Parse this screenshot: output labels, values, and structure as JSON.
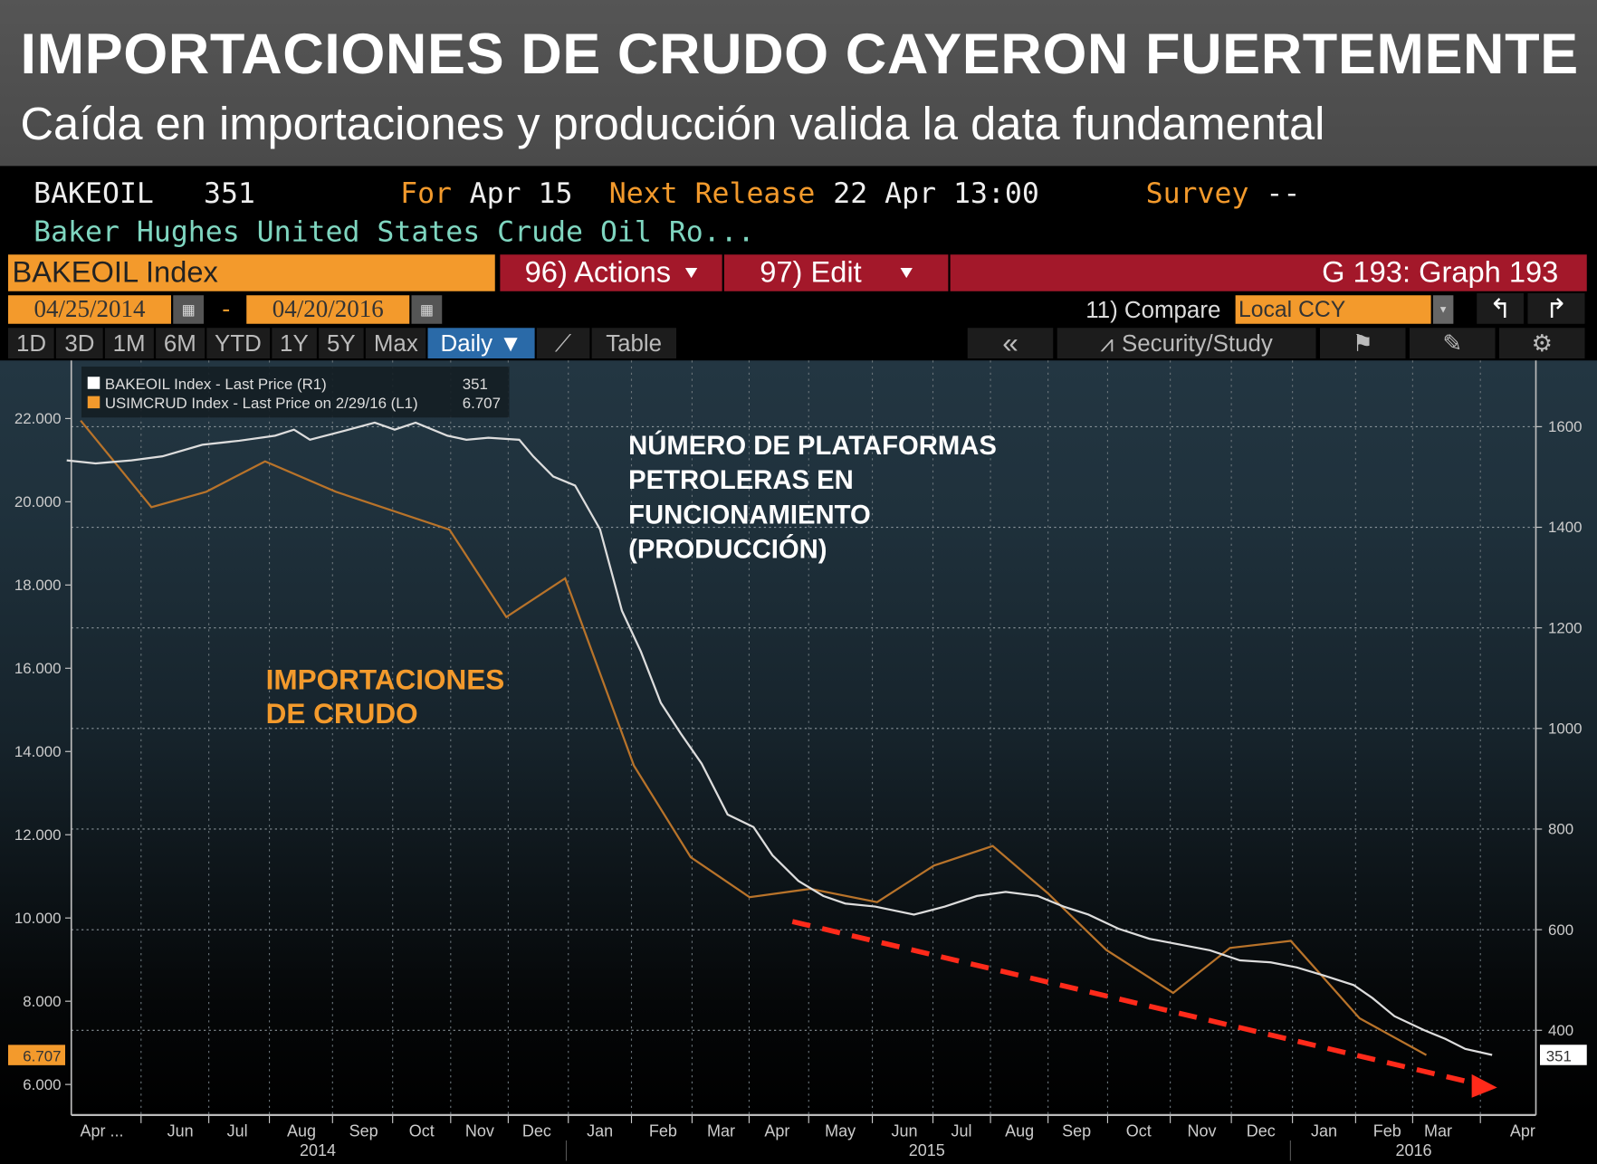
{
  "header": {
    "title": "IMPORTACIONES DE CRUDO CAYERON FUERTEMENTE",
    "subtitle": "Caída en importaciones y producción valida la data fundamental"
  },
  "terminal": {
    "ticker": "BAKEOIL",
    "last": "351",
    "for_label": "For",
    "for_value": "Apr 15",
    "next_label": "Next Release",
    "next_value": "22 Apr 13:00",
    "survey_label": "Survey",
    "survey_value": "--",
    "description": "Baker Hughes United States Crude Oil Ro...",
    "security": "BAKEOIL Index",
    "actions": "96) Actions",
    "edit": "97) Edit",
    "graph": "G 193: Graph 193",
    "start_date": "04/25/2014",
    "end_date": "04/20/2016",
    "date_sep": "-",
    "compare": "11) Compare",
    "currency": "Local CCY",
    "periods": [
      "1D",
      "3D",
      "1M",
      "6M",
      "YTD",
      "1Y",
      "5Y",
      "Max"
    ],
    "frequency": "Daily ▼",
    "table": "Table",
    "collapse": "«",
    "security_study": "Security/Study"
  },
  "colors": {
    "orange": "#f39a2c",
    "red_bar": "#a3182a",
    "white_line": "#dddddd",
    "import_line": "#b8732a",
    "arrow": "#ff2a1a",
    "selected_tab": "#2a6aa8"
  },
  "chart_data": {
    "type": "line",
    "legend": [
      {
        "label": "BAKEOIL Index - Last Price (R1)",
        "value": "351",
        "color": "#ffffff"
      },
      {
        "label": "USIMCRUD Index - Last Price on 2/29/16 (L1)",
        "value": "6.707",
        "color": "#f39a2c"
      }
    ],
    "legend_position": "top-left",
    "left_axis": {
      "range": [
        5500,
        23000
      ],
      "ticks": [
        "22.000",
        "20.000",
        "18.000",
        "16.000",
        "14.000",
        "12.000",
        "10.000",
        "8.000",
        "6.000"
      ],
      "tick_values": [
        22000,
        20000,
        18000,
        16000,
        14000,
        12000,
        10000,
        8000,
        6000
      ],
      "last_tag": "6.707"
    },
    "right_axis": {
      "range": [
        250,
        1700
      ],
      "ticks": [
        "1600",
        "1400",
        "1200",
        "1000",
        "800",
        "600",
        "400"
      ],
      "tick_values": [
        1600,
        1400,
        1200,
        1000,
        800,
        600,
        400
      ],
      "last_tag": "351"
    },
    "x_ticks": [
      "Apr ...",
      "Jun",
      "Jul",
      "Aug",
      "Sep",
      "Oct",
      "Nov",
      "Dec",
      "Jan",
      "Feb",
      "Mar",
      "Apr",
      "May",
      "Jun",
      "Jul",
      "Aug",
      "Sep",
      "Oct",
      "Nov",
      "Dec",
      "Jan",
      "Feb",
      "Mar",
      "Apr"
    ],
    "years": [
      "2014",
      "2015",
      "2016"
    ],
    "grid": true,
    "annotations": {
      "rigs": [
        "NÚMERO DE PLATAFORMAS",
        "PETROLERAS EN",
        "FUNCIONAMIENTO",
        "(PRODUCCIÓN)"
      ],
      "imports": [
        "IMPORTACIONES",
        "DE CRUDO"
      ]
    },
    "series": [
      {
        "name": "USIMCRUD Index",
        "axis": "left",
        "points": [
          [
            "2014-04-25",
            21950
          ],
          [
            "2014-05-30",
            19870
          ],
          [
            "2014-06-27",
            20240
          ],
          [
            "2014-07-26",
            20970
          ],
          [
            "2014-08-31",
            20240
          ],
          [
            "2014-10-27",
            19330
          ],
          [
            "2014-11-25",
            17230
          ],
          [
            "2014-12-24",
            18160
          ],
          [
            "2015-01-28",
            13660
          ],
          [
            "2015-02-26",
            11460
          ],
          [
            "2015-03-25",
            10500
          ],
          [
            "2015-04-25",
            10700
          ],
          [
            "2015-05-28",
            10380
          ],
          [
            "2015-06-26",
            11260
          ],
          [
            "2015-07-25",
            11730
          ],
          [
            "2015-08-22",
            10600
          ],
          [
            "2015-09-21",
            9230
          ],
          [
            "2015-10-24",
            8200
          ],
          [
            "2015-11-22",
            9280
          ],
          [
            "2015-12-22",
            9450
          ],
          [
            "2016-01-26",
            7590
          ],
          [
            "2016-02-29",
            6707
          ]
        ]
      },
      {
        "name": "BAKEOIL Index",
        "axis": "right",
        "points": [
          [
            "2014-04-18",
            1533
          ],
          [
            "2014-05-02",
            1527
          ],
          [
            "2014-05-20",
            1533
          ],
          [
            "2014-06-05",
            1541
          ],
          [
            "2014-06-25",
            1564
          ],
          [
            "2014-07-13",
            1572
          ],
          [
            "2014-07-31",
            1582
          ],
          [
            "2014-08-10",
            1594
          ],
          [
            "2014-08-18",
            1574
          ],
          [
            "2014-09-05",
            1592
          ],
          [
            "2014-09-20",
            1608
          ],
          [
            "2014-09-30",
            1594
          ],
          [
            "2014-10-10",
            1608
          ],
          [
            "2014-10-26",
            1582
          ],
          [
            "2014-11-05",
            1574
          ],
          [
            "2014-11-16",
            1578
          ],
          [
            "2014-12-01",
            1574
          ],
          [
            "2014-12-08",
            1541
          ],
          [
            "2014-12-18",
            1501
          ],
          [
            "2014-12-29",
            1483
          ],
          [
            "2015-01-11",
            1396
          ],
          [
            "2015-01-22",
            1234
          ],
          [
            "2015-02-01",
            1153
          ],
          [
            "2015-02-11",
            1051
          ],
          [
            "2015-02-21",
            990
          ],
          [
            "2015-03-01",
            930
          ],
          [
            "2015-03-14",
            829
          ],
          [
            "2015-03-27",
            804
          ],
          [
            "2015-04-06",
            748
          ],
          [
            "2015-04-19",
            697
          ],
          [
            "2015-05-01",
            667
          ],
          [
            "2015-05-12",
            652
          ],
          [
            "2015-05-27",
            646
          ],
          [
            "2015-06-16",
            630
          ],
          [
            "2015-07-01",
            646
          ],
          [
            "2015-07-17",
            667
          ],
          [
            "2015-08-01",
            675
          ],
          [
            "2015-08-17",
            667
          ],
          [
            "2015-08-30",
            646
          ],
          [
            "2015-09-12",
            630
          ],
          [
            "2015-09-27",
            602
          ],
          [
            "2015-10-12",
            582
          ],
          [
            "2015-10-28",
            570
          ],
          [
            "2015-11-12",
            559
          ],
          [
            "2015-11-27",
            539
          ],
          [
            "2015-12-12",
            535
          ],
          [
            "2015-12-25",
            525
          ],
          [
            "2016-01-08",
            509
          ],
          [
            "2016-01-23",
            490
          ],
          [
            "2016-02-02",
            464
          ],
          [
            "2016-02-13",
            428
          ],
          [
            "2016-02-28",
            400
          ],
          [
            "2016-03-08",
            383
          ],
          [
            "2016-03-18",
            363
          ],
          [
            "2016-04-01",
            351
          ]
        ]
      }
    ]
  }
}
